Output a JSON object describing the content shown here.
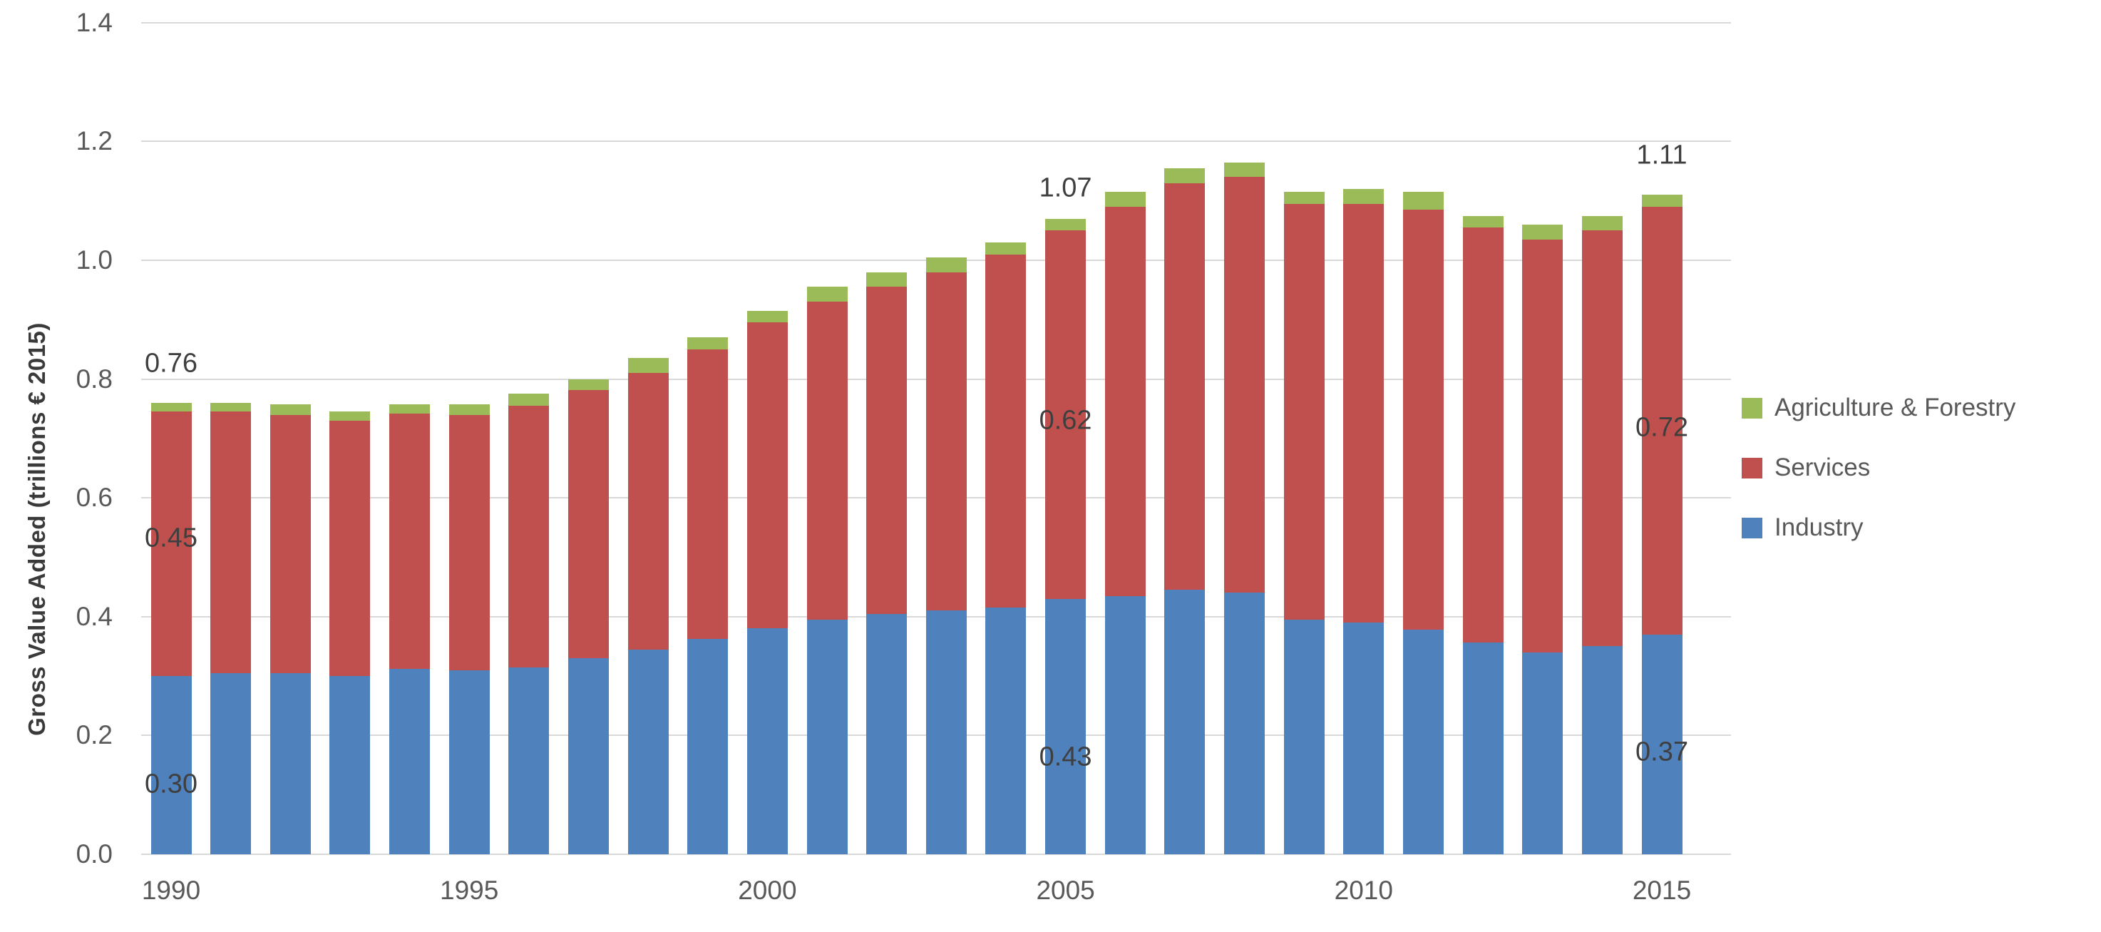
{
  "chart_data": {
    "type": "bar",
    "stacked": true,
    "title": "",
    "xlabel": "",
    "ylabel": "Gross Value Added  (trillions € 2015)",
    "ylim": [
      0,
      1.4
    ],
    "grid": true,
    "ytick_labels": [
      "0.0",
      "0.2",
      "0.4",
      "0.6",
      "0.8",
      "1.0",
      "1.2",
      "1.4"
    ],
    "ytick_values": [
      0.0,
      0.2,
      0.4,
      0.6,
      0.8,
      1.0,
      1.2,
      1.4
    ],
    "xtick_years": [
      1990,
      1995,
      2000,
      2005,
      2010,
      2015
    ],
    "categories": [
      1990,
      1991,
      1992,
      1993,
      1994,
      1995,
      1996,
      1997,
      1998,
      1999,
      2000,
      2001,
      2002,
      2003,
      2004,
      2005,
      2006,
      2007,
      2008,
      2009,
      2010,
      2011,
      2012,
      2013,
      2014,
      2015
    ],
    "series": [
      {
        "name": "Industry",
        "color": "#4F81BD",
        "values": [
          0.3,
          0.305,
          0.305,
          0.3,
          0.312,
          0.31,
          0.315,
          0.33,
          0.345,
          0.363,
          0.38,
          0.395,
          0.405,
          0.41,
          0.415,
          0.43,
          0.435,
          0.445,
          0.44,
          0.395,
          0.39,
          0.378,
          0.356,
          0.34,
          0.35,
          0.37
        ]
      },
      {
        "name": "Services",
        "color": "#C0504D",
        "values": [
          0.445,
          0.44,
          0.435,
          0.43,
          0.43,
          0.43,
          0.44,
          0.452,
          0.465,
          0.487,
          0.515,
          0.535,
          0.55,
          0.57,
          0.595,
          0.62,
          0.655,
          0.685,
          0.7,
          0.7,
          0.705,
          0.707,
          0.699,
          0.695,
          0.7,
          0.72
        ]
      },
      {
        "name": "Agriculture & Forestry",
        "color": "#9BBB59",
        "values": [
          0.015,
          0.015,
          0.017,
          0.015,
          0.016,
          0.018,
          0.02,
          0.018,
          0.025,
          0.02,
          0.02,
          0.025,
          0.025,
          0.025,
          0.02,
          0.02,
          0.025,
          0.025,
          0.025,
          0.02,
          0.025,
          0.03,
          0.02,
          0.025,
          0.025,
          0.02
        ]
      }
    ],
    "legend": {
      "position": "right",
      "order": [
        "Agriculture & Forestry",
        "Services",
        "Industry"
      ]
    },
    "annotations": [
      {
        "text": "0.76",
        "year": 1990,
        "v": 0.826
      },
      {
        "text": "0.45",
        "year": 1990,
        "v": 0.532
      },
      {
        "text": "0.30",
        "year": 1990,
        "v": 0.118
      },
      {
        "text": "1.07",
        "year": 2005,
        "v": 1.121
      },
      {
        "text": "0.62",
        "year": 2005,
        "v": 0.73
      },
      {
        "text": "0.43",
        "year": 2005,
        "v": 0.163
      },
      {
        "text": "1.11",
        "year": 2015,
        "v": 1.177
      },
      {
        "text": "0.72",
        "year": 2015,
        "v": 0.718
      },
      {
        "text": "0.37",
        "year": 2015,
        "v": 0.172
      }
    ]
  },
  "colors": {
    "background": "#FFFFFF",
    "gridline": "#D9D9D9",
    "tick_text": "#595959",
    "annotation_text": "#3F3F3F"
  }
}
